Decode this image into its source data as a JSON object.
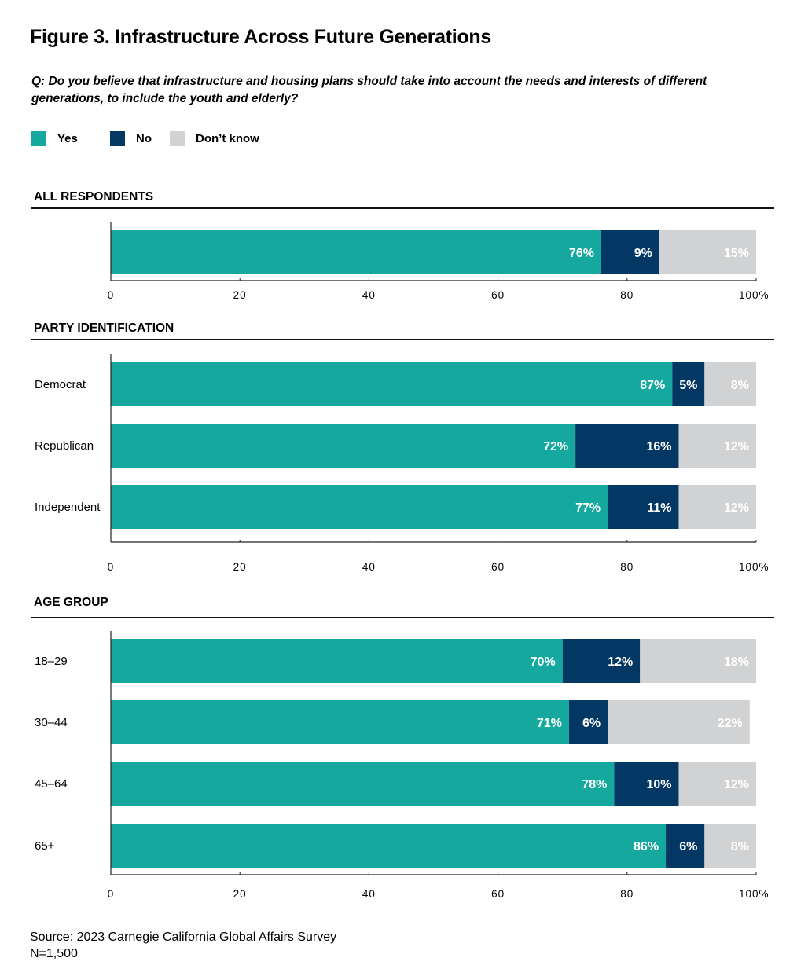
{
  "title": "Figure 3. Infrastructure Across Future Generations",
  "question": "Q: Do you believe that infrastructure and housing plans should take into account the needs and interests of different generations, to include the youth and elderly?",
  "legend": [
    {
      "label": "Yes",
      "color": "#14a89e"
    },
    {
      "label": "No",
      "color": "#033864"
    },
    {
      "label": "Don’t know",
      "color": "#d1d2d4"
    }
  ],
  "source": {
    "line1": "Source: 2023 Carnegie California Global Affairs Survey",
    "line2": "N=1,500"
  },
  "chart_data": [
    {
      "type": "bar",
      "stacked": true,
      "orientation": "horizontal",
      "title": "ALL RESPONDENTS",
      "categories": [
        ""
      ],
      "series": [
        {
          "name": "Yes",
          "values": [
            76
          ]
        },
        {
          "name": "No",
          "values": [
            9
          ]
        },
        {
          "name": "Don’t know",
          "values": [
            15
          ]
        }
      ],
      "xlim": [
        0,
        100
      ],
      "xticks": [
        "0",
        "20",
        "40",
        "60",
        "80",
        "100%"
      ]
    },
    {
      "type": "bar",
      "stacked": true,
      "orientation": "horizontal",
      "title": "PARTY IDENTIFICATION",
      "categories": [
        "Democrat",
        "Republican",
        "Independent"
      ],
      "series": [
        {
          "name": "Yes",
          "values": [
            87,
            72,
            77
          ]
        },
        {
          "name": "No",
          "values": [
            5,
            16,
            11
          ]
        },
        {
          "name": "Don’t know",
          "values": [
            8,
            12,
            12
          ]
        }
      ],
      "xlim": [
        0,
        100
      ],
      "xticks": [
        "0",
        "20",
        "40",
        "60",
        "80",
        "100%"
      ]
    },
    {
      "type": "bar",
      "stacked": true,
      "orientation": "horizontal",
      "title": "AGE GROUP",
      "categories": [
        "18–29",
        "30–44",
        "45–64",
        "65+"
      ],
      "series": [
        {
          "name": "Yes",
          "values": [
            70,
            71,
            78,
            86
          ]
        },
        {
          "name": "No",
          "values": [
            12,
            6,
            10,
            6
          ]
        },
        {
          "name": "Don’t know",
          "values": [
            18,
            22,
            12,
            8
          ]
        }
      ],
      "xlim": [
        0,
        100
      ],
      "xticks": [
        "0",
        "20",
        "40",
        "60",
        "80",
        "100%"
      ]
    }
  ]
}
